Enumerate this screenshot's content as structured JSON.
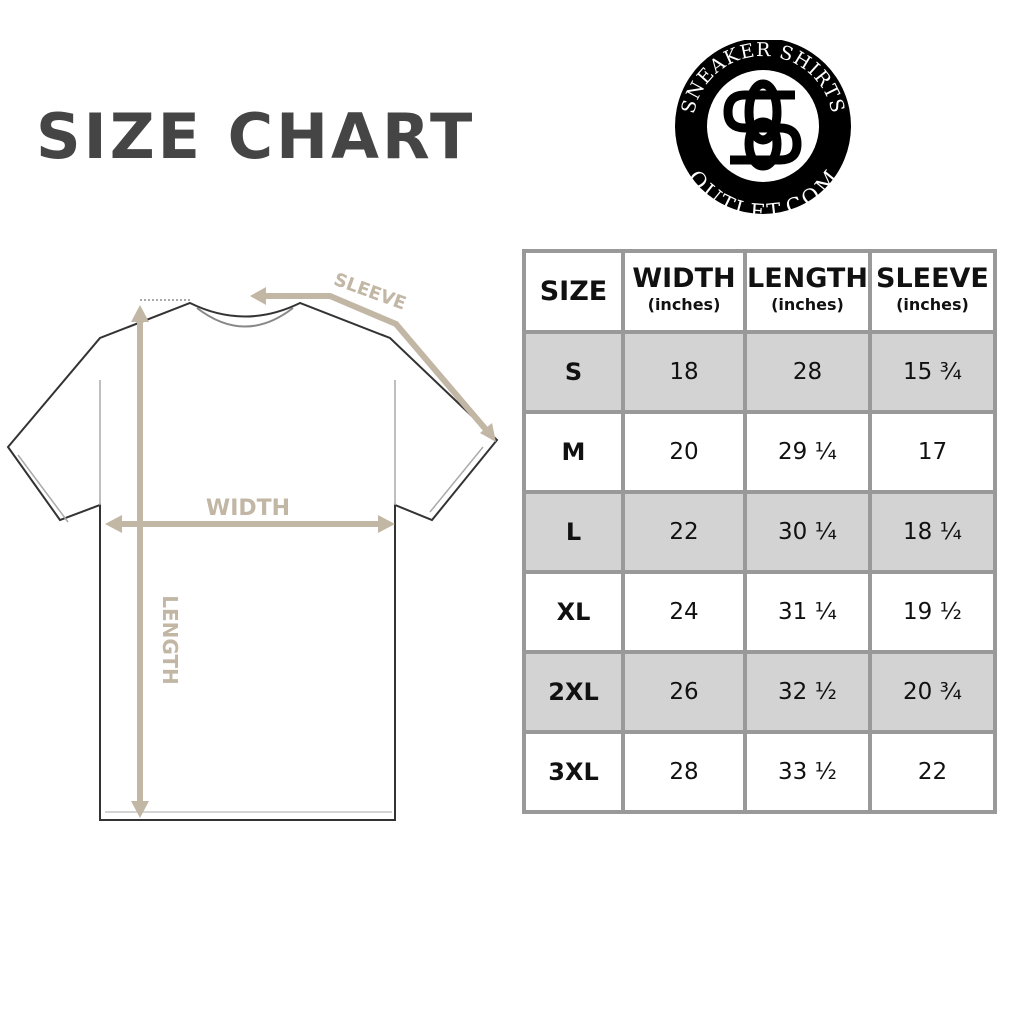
{
  "title": "SIZE CHART",
  "logo": {
    "top_text": "SNEAKER SHIRTS",
    "bottom_text": "OUTLET.COM",
    "monogram": "SS"
  },
  "diagram": {
    "width_label": "WIDTH",
    "length_label": "LENGTH",
    "sleeve_label": "SLEEVE",
    "accent_color": "#c2b6a4"
  },
  "table": {
    "headers": [
      {
        "label": "SIZE",
        "unit": ""
      },
      {
        "label": "WIDTH",
        "unit": "(inches)"
      },
      {
        "label": "LENGTH",
        "unit": "(inches)"
      },
      {
        "label": "SLEEVE",
        "unit": "(inches)"
      }
    ],
    "rows": [
      [
        "S",
        "18",
        "28",
        "15 ¾"
      ],
      [
        "M",
        "20",
        "29 ¼",
        "17"
      ],
      [
        "L",
        "22",
        "30 ¼",
        "18 ¼"
      ],
      [
        "XL",
        "24",
        "31 ¼",
        "19 ½"
      ],
      [
        "2XL",
        "26",
        "32 ½",
        "20 ¾"
      ],
      [
        "3XL",
        "28",
        "33 ½",
        "22"
      ]
    ]
  }
}
